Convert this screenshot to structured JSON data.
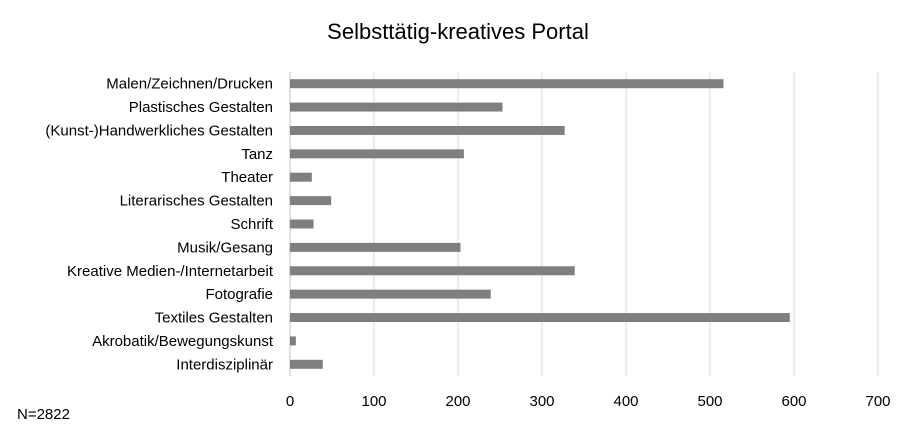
{
  "chart_data": {
    "type": "bar",
    "orientation": "horizontal",
    "title": "Selbsttätig-kreatives Portal",
    "note": "N=2822",
    "categories": [
      "Malen/Zeichnen/Drucken",
      "Plastisches Gestalten",
      "(Kunst-)Handwerkliches Gestalten",
      "Tanz",
      "Theater",
      "Literarisches Gestalten",
      "Schrift",
      "Musik/Gesang",
      "Kreative Medien-/Internetarbeit",
      "Fotografie",
      "Textiles Gestalten",
      "Akrobatik/Bewegungskunst",
      "Interdisziplinär"
    ],
    "values": [
      516,
      253,
      327,
      207,
      26,
      49,
      28,
      203,
      339,
      239,
      595,
      7,
      39
    ],
    "xlim": [
      0,
      700
    ],
    "xticks": [
      0,
      100,
      200,
      300,
      400,
      500,
      600,
      700
    ],
    "grid": true,
    "legend": "none",
    "colors": {
      "bar": "#7f7f7f",
      "grid": "#d9d9d9",
      "axis": "#bfbfbf"
    }
  }
}
